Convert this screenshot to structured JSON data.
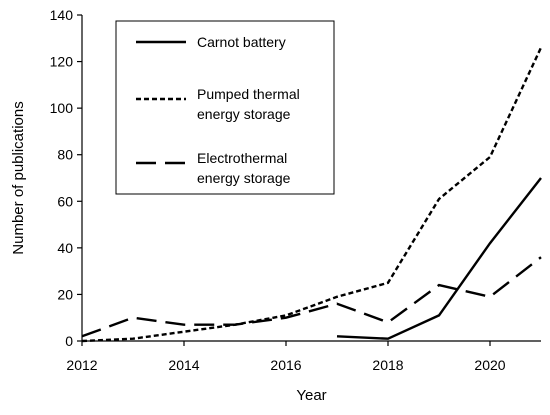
{
  "chart_data": {
    "type": "line",
    "title": "",
    "xlabel": "Year",
    "ylabel": "Number of publications",
    "xlim": [
      2012,
      2021
    ],
    "ylim": [
      0,
      140
    ],
    "x_ticks": [
      2012,
      2014,
      2016,
      2018,
      2020
    ],
    "y_ticks": [
      0,
      20,
      40,
      60,
      80,
      100,
      120,
      140
    ],
    "grid": false,
    "legend_position": "top-left",
    "series": [
      {
        "name": "Carnot battery",
        "style": "solid",
        "color": "#000000",
        "points": [
          [
            2017,
            2
          ],
          [
            2018,
            1
          ],
          [
            2019,
            11
          ],
          [
            2020,
            42
          ],
          [
            2021,
            70
          ]
        ]
      },
      {
        "name": "Pumped thermal energy storage",
        "legend_lines": [
          "Pumped thermal",
          "energy storage"
        ],
        "style": "short-dash",
        "color": "#000000",
        "points": [
          [
            2012,
            0
          ],
          [
            2013,
            1
          ],
          [
            2014,
            4
          ],
          [
            2015,
            7
          ],
          [
            2016,
            11
          ],
          [
            2017,
            19
          ],
          [
            2018,
            25
          ],
          [
            2019,
            61
          ],
          [
            2020,
            79
          ],
          [
            2021,
            126
          ]
        ]
      },
      {
        "name": "Electrothermal energy storage",
        "legend_lines": [
          "Electrothermal",
          "energy storage"
        ],
        "style": "long-dash",
        "color": "#000000",
        "points": [
          [
            2012,
            2
          ],
          [
            2013,
            10
          ],
          [
            2014,
            7
          ],
          [
            2015,
            7
          ],
          [
            2016,
            10
          ],
          [
            2017,
            16
          ],
          [
            2018,
            8
          ],
          [
            2019,
            24
          ],
          [
            2020,
            19
          ],
          [
            2021,
            36
          ]
        ]
      }
    ]
  }
}
